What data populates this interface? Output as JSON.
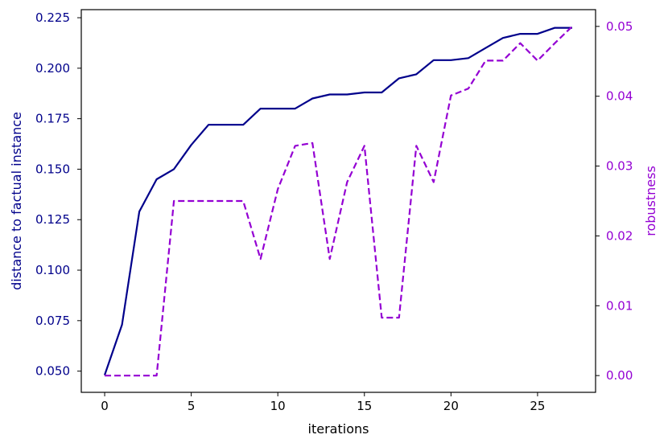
{
  "chart_data": {
    "type": "line",
    "xlabel": "iterations",
    "ylabel_left": "distance to factual instance",
    "ylabel_right": "robustness",
    "xlim": [
      -1.35,
      28.35
    ],
    "ylim_left": [
      0.0395,
      0.229
    ],
    "ylim_right": [
      -0.0024,
      0.0524
    ],
    "x_ticks": [
      0,
      5,
      10,
      15,
      20,
      25
    ],
    "y_left_ticks": [
      "0.050",
      "0.075",
      "0.100",
      "0.125",
      "0.150",
      "0.175",
      "0.200",
      "0.225"
    ],
    "y_right_ticks": [
      "0.00",
      "0.01",
      "0.02",
      "0.03",
      "0.04",
      "0.05"
    ],
    "colors": {
      "left": "#00008b",
      "right": "#9400d3",
      "axis": "#000000"
    },
    "grid": false,
    "series": [
      {
        "axis": "left",
        "style": "solid",
        "x": [
          0,
          1,
          2,
          3,
          4,
          5,
          6,
          7,
          8,
          9,
          10,
          11,
          12,
          13,
          14,
          15,
          16,
          17,
          18,
          19,
          20,
          21,
          22,
          23,
          24,
          25,
          26,
          27
        ],
        "values": [
          0.048,
          0.073,
          0.129,
          0.145,
          0.15,
          0.162,
          0.172,
          0.172,
          0.172,
          0.18,
          0.18,
          0.18,
          0.185,
          0.187,
          0.187,
          0.188,
          0.188,
          0.195,
          0.197,
          0.204,
          0.204,
          0.205,
          0.21,
          0.215,
          0.217,
          0.217,
          0.22,
          0.22
        ]
      },
      {
        "axis": "right",
        "style": "dashed",
        "x": [
          0,
          1,
          2,
          3,
          4,
          5,
          6,
          7,
          8,
          9,
          10,
          11,
          12,
          13,
          14,
          15,
          16,
          17,
          18,
          19,
          20,
          21,
          22,
          23,
          24,
          25,
          26,
          27
        ],
        "values": [
          0.0,
          0.0,
          0.0,
          0.0,
          0.025,
          0.025,
          0.025,
          0.025,
          0.025,
          0.0167,
          0.0267,
          0.0329,
          0.0333,
          0.0167,
          0.0277,
          0.0329,
          0.0083,
          0.0083,
          0.0329,
          0.0277,
          0.0401,
          0.0411,
          0.0451,
          0.0451,
          0.0476,
          0.0451,
          0.0476,
          0.05
        ]
      }
    ]
  }
}
